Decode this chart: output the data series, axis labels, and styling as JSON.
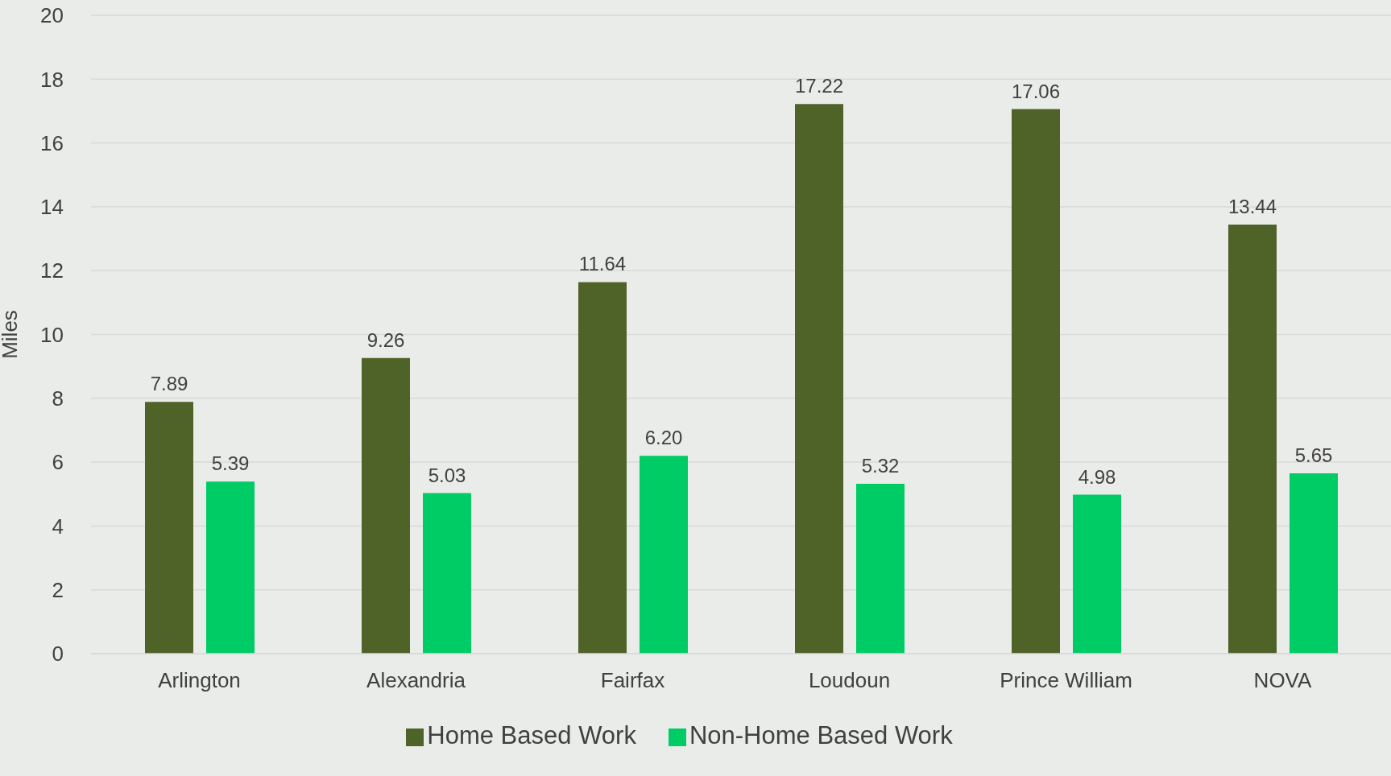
{
  "chart_data": {
    "type": "bar",
    "ylabel": "Miles",
    "categories": [
      "Arlington",
      "Alexandria",
      "Fairfax",
      "Loudoun",
      "Prince William",
      "NOVA"
    ],
    "series": [
      {
        "name": "Home Based Work",
        "color": "#4f6228",
        "values": [
          7.89,
          9.26,
          11.64,
          17.22,
          17.06,
          13.44
        ]
      },
      {
        "name": "Non-Home Based Work",
        "color": "#00cc66",
        "values": [
          5.39,
          5.03,
          6.2,
          5.32,
          4.98,
          5.65
        ]
      }
    ],
    "value_labels": [
      [
        "7.89",
        "9.26",
        "11.64",
        "17.22",
        "17.06",
        "13.44"
      ],
      [
        "5.39",
        "5.03",
        "6.20",
        "5.32",
        "4.98",
        "5.65"
      ]
    ],
    "ylim": [
      0,
      20
    ],
    "yticks": [
      0,
      2,
      4,
      6,
      8,
      10,
      12,
      14,
      16,
      18,
      20
    ],
    "grid": "y",
    "legend": "bottom"
  }
}
